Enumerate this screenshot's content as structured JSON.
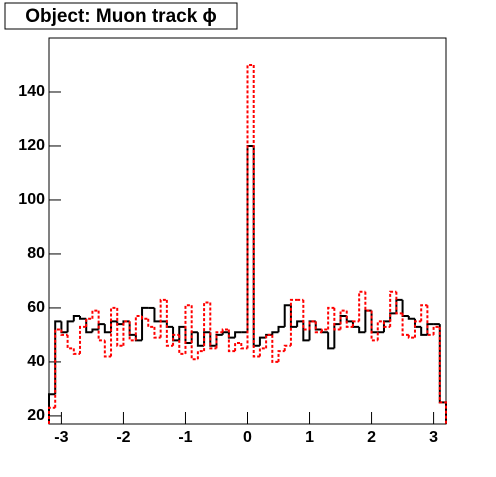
{
  "chart_data": {
    "type": "histogram",
    "title": "Object: Muon track ϕ",
    "bins": [
      -3.2,
      -3.1,
      -3.0,
      -2.9,
      -2.8,
      -2.7,
      -2.6,
      -2.5,
      -2.4,
      -2.3,
      -2.2,
      -2.1,
      -2.0,
      -1.9,
      -1.8,
      -1.7,
      -1.6,
      -1.5,
      -1.4,
      -1.3,
      -1.2,
      -1.1,
      -1.0,
      -0.9,
      -0.8,
      -0.7,
      -0.6,
      -0.5,
      -0.4,
      -0.3,
      -0.2,
      -0.1,
      0.0,
      0.1,
      0.2,
      0.3,
      0.4,
      0.5,
      0.6,
      0.7,
      0.8,
      0.9,
      1.0,
      1.1,
      1.2,
      1.3,
      1.4,
      1.5,
      1.6,
      1.7,
      1.8,
      1.9,
      2.0,
      2.1,
      2.2,
      2.3,
      2.4,
      2.5,
      2.6,
      2.7,
      2.8,
      2.9,
      3.0,
      3.1,
      3.2
    ],
    "series": [
      {
        "color": "#000000",
        "dashed": false,
        "values": [
          28,
          55,
          51,
          55,
          57,
          56,
          51,
          52,
          54,
          51,
          55,
          54,
          55,
          50,
          48,
          60,
          60,
          55,
          55,
          53,
          48,
          53,
          47,
          51,
          46,
          51,
          46,
          50,
          51,
          49,
          51,
          51,
          120,
          46,
          49,
          50,
          51,
          53,
          61,
          53,
          55,
          48,
          55,
          52,
          51,
          45,
          54,
          57,
          55,
          53,
          51,
          59,
          51,
          51,
          55,
          58,
          63,
          57,
          56,
          53,
          50,
          54,
          54,
          25
        ]
      },
      {
        "color": "#ff0000",
        "dashed": true,
        "values": [
          23,
          52,
          50,
          45,
          43,
          53,
          56,
          59,
          48,
          42,
          60,
          46,
          55,
          48,
          57,
          56,
          53,
          49,
          63,
          46,
          50,
          43,
          61,
          41,
          44,
          62,
          45,
          51,
          52,
          44,
          47,
          45,
          150,
          42,
          45,
          50,
          40,
          44,
          46,
          63,
          63,
          52,
          55,
          51,
          52,
          60,
          52,
          59,
          53,
          55,
          66,
          59,
          48,
          55,
          53,
          66,
          58,
          50,
          49,
          55,
          61,
          50,
          53,
          25
        ]
      }
    ],
    "xlim": [
      -3.2,
      3.2
    ],
    "ylim": [
      17,
      160
    ],
    "xticks": [
      -3,
      -2,
      -1,
      0,
      1,
      2,
      3
    ],
    "yticks": [
      20,
      40,
      60,
      80,
      100,
      120,
      140
    ]
  }
}
